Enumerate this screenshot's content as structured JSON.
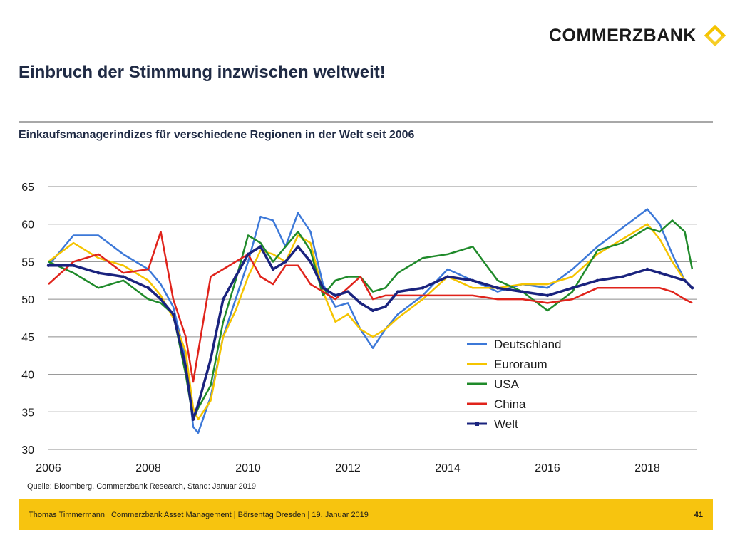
{
  "brand": {
    "name": "COMMERZBANK",
    "logo_color": "#f5c400"
  },
  "header": {
    "title": "Einbruch der Stimmung inzwischen weltweit!"
  },
  "chart_data": {
    "type": "line",
    "title": "Einkaufsmanagerindizes für verschiedene Regionen in der Welt seit 2006",
    "xlabel": "",
    "ylabel": "",
    "xlim": [
      2006.0,
      2019.0
    ],
    "ylim": [
      30,
      65
    ],
    "x_ticks": [
      "2006",
      "2008",
      "2010",
      "2012",
      "2014",
      "2016",
      "2018"
    ],
    "y_ticks": [
      "30",
      "35",
      "40",
      "45",
      "50",
      "55",
      "60",
      "65"
    ],
    "grid": true,
    "legend_position": "bottom-right",
    "x": [
      2006.0,
      2006.5,
      2007.0,
      2007.5,
      2008.0,
      2008.25,
      2008.5,
      2008.75,
      2008.9,
      2009.0,
      2009.25,
      2009.5,
      2009.75,
      2010.0,
      2010.25,
      2010.5,
      2010.75,
      2011.0,
      2011.25,
      2011.5,
      2011.75,
      2012.0,
      2012.25,
      2012.5,
      2012.75,
      2013.0,
      2013.5,
      2014.0,
      2014.5,
      2015.0,
      2015.5,
      2016.0,
      2016.5,
      2017.0,
      2017.5,
      2018.0,
      2018.25,
      2018.5,
      2018.75,
      2018.9
    ],
    "series": [
      {
        "name": "Deutschland",
        "color": "#3c78d8",
        "values": [
          54.5,
          58.5,
          58.5,
          56.0,
          54.0,
          52.0,
          49.0,
          42.0,
          33.0,
          32.2,
          37.0,
          45.0,
          50.0,
          55.0,
          61.0,
          60.5,
          57.0,
          61.5,
          59.0,
          52.0,
          49.0,
          49.5,
          46.0,
          43.5,
          46.0,
          48.0,
          50.5,
          54.0,
          52.5,
          51.0,
          52.0,
          51.5,
          54.0,
          57.0,
          59.5,
          62.0,
          60.0,
          56.0,
          52.5,
          51.5
        ]
      },
      {
        "name": "Euroraum",
        "color": "#f5c400",
        "values": [
          55.0,
          57.5,
          55.5,
          54.5,
          52.5,
          50.5,
          47.5,
          43.0,
          35.5,
          34.0,
          36.5,
          45.0,
          48.5,
          53.0,
          56.5,
          56.0,
          55.0,
          58.5,
          57.5,
          51.0,
          47.0,
          48.0,
          46.0,
          45.0,
          46.0,
          47.5,
          50.0,
          53.0,
          51.5,
          51.5,
          52.0,
          52.0,
          53.0,
          56.0,
          58.0,
          60.0,
          58.0,
          55.0,
          52.5,
          51.4
        ]
      },
      {
        "name": "USA",
        "color": "#1f8a2a",
        "values": [
          55.0,
          53.5,
          51.5,
          52.5,
          50.0,
          49.5,
          48.0,
          40.0,
          34.0,
          35.5,
          38.5,
          47.0,
          52.5,
          58.5,
          57.5,
          55.0,
          57.0,
          59.0,
          56.5,
          50.5,
          52.5,
          53.0,
          53.0,
          51.0,
          51.5,
          53.5,
          55.5,
          56.0,
          57.0,
          52.5,
          51.0,
          48.5,
          51.0,
          56.5,
          57.5,
          59.5,
          59.0,
          60.5,
          59.0,
          54.0
        ]
      },
      {
        "name": "China",
        "color": "#e0231b",
        "values": [
          52.0,
          55.0,
          56.0,
          53.5,
          54.0,
          59.0,
          50.0,
          45.0,
          39.0,
          43.0,
          53.0,
          54.0,
          55.0,
          56.0,
          53.0,
          52.0,
          54.5,
          54.5,
          52.0,
          51.0,
          50.0,
          51.5,
          53.0,
          50.0,
          50.5,
          50.5,
          50.5,
          50.5,
          50.5,
          50.0,
          50.0,
          49.5,
          50.0,
          51.5,
          51.5,
          51.5,
          51.5,
          51.0,
          50.0,
          49.5
        ]
      },
      {
        "name": "Welt",
        "color": "#1a237e",
        "values": [
          54.5,
          54.5,
          53.5,
          53.0,
          51.5,
          50.0,
          48.0,
          41.0,
          34.0,
          36.0,
          42.0,
          50.0,
          53.0,
          56.0,
          57.0,
          54.0,
          55.0,
          57.0,
          55.0,
          51.5,
          50.5,
          51.0,
          49.5,
          48.5,
          49.0,
          51.0,
          51.5,
          53.0,
          52.5,
          51.5,
          51.0,
          50.5,
          51.5,
          52.5,
          53.0,
          54.0,
          53.5,
          53.0,
          52.5,
          51.5
        ]
      }
    ]
  },
  "source": {
    "text": "Quelle: Bloomberg, Commerzbank Research, Stand: Januar 2019"
  },
  "footer": {
    "text": "Thomas Timmermann | Commerzbank Asset Management | Börsentag Dresden | 19. Januar 2019",
    "page": "41"
  }
}
